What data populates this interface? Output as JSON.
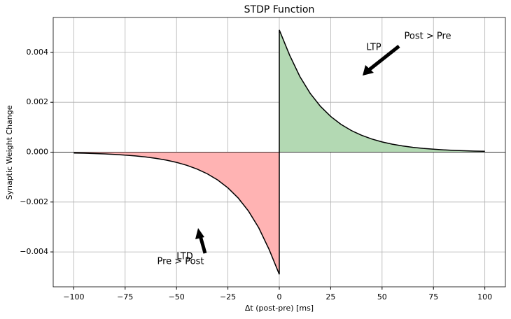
{
  "chart_data": {
    "type": "line",
    "title": "STDP Function",
    "x_label": "Δt (post-pre) [ms]",
    "y_label": "Synaptic Weight Change",
    "x": [
      -100,
      -95,
      -90,
      -85,
      -80,
      -75,
      -70,
      -65,
      -60,
      -55,
      -50,
      -45,
      -40,
      -35,
      -30,
      -25,
      -20,
      -15,
      -10,
      -5,
      0,
      0,
      5,
      10,
      15,
      20,
      25,
      30,
      35,
      40,
      45,
      50,
      55,
      60,
      65,
      70,
      75,
      80,
      85,
      90,
      95,
      100
    ],
    "series": [
      {
        "color": "#000000",
        "values": [
          -3.4e-05,
          -4.3e-05,
          -5.6e-05,
          -7.1e-05,
          -9.2e-05,
          -0.000118,
          -0.000151,
          -0.000194,
          -0.000249,
          -0.00032,
          -0.00041,
          -0.000527,
          -0.000677,
          -0.000869,
          -0.001116,
          -0.001433,
          -0.001839,
          -0.002362,
          -0.003033,
          -0.003894,
          -0.0049,
          0.0049,
          0.003894,
          0.003033,
          0.002362,
          0.001839,
          0.001433,
          0.001116,
          0.000869,
          0.000677,
          0.000527,
          0.00041,
          0.00032,
          0.000249,
          0.000194,
          0.000151,
          0.000118,
          9.2e-05,
          7.1e-05,
          5.6e-05,
          4.3e-05,
          3.4e-05
        ]
      }
    ],
    "fill_colors": {
      "negative": "#ffb3b3",
      "positive": "#b3d9b3"
    },
    "annotations": [
      "LTP",
      "Post > Pre",
      "LTD",
      "Pre > Post"
    ],
    "xlim": [
      -110,
      110
    ],
    "xticks": [
      {
        "value": -100,
        "label": "−100"
      },
      {
        "value": -75,
        "label": "−75"
      },
      {
        "value": -50,
        "label": "−50"
      },
      {
        "value": -25,
        "label": "−25"
      },
      0,
      25,
      50,
      75,
      100
    ],
    "ylim": [
      -0.0054,
      0.0054
    ],
    "yticks": [
      {
        "value": -0.004,
        "label": "−0.004"
      },
      {
        "value": -0.002,
        "label": "−0.002"
      },
      {
        "value": 0,
        "label": "0.000"
      },
      {
        "value": 0.002,
        "label": "0.002"
      },
      {
        "value": 0.004,
        "label": "0.004"
      }
    ],
    "grid": true
  }
}
